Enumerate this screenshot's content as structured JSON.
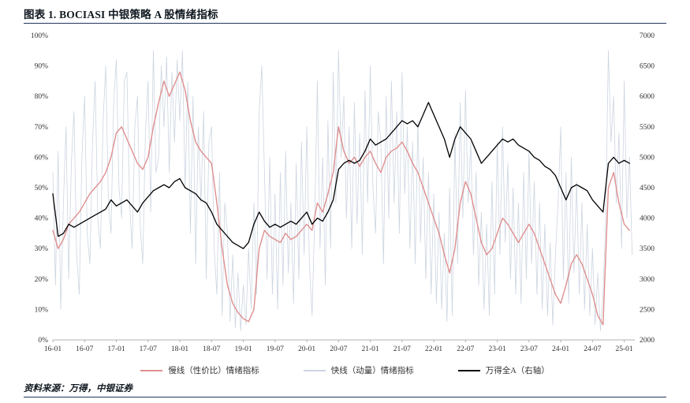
{
  "page": {
    "title": "图表 1. BOCIASI 中银策略 A 股情绪指标",
    "source": "资料来源：万得，中银证券"
  },
  "colors": {
    "rule": "#23365c",
    "slow_line": "#df8f8f",
    "fast_line": "#cdd5e1",
    "index_line": "#000000",
    "axis_text": "#333333",
    "axis_line": "#b0b0b0"
  },
  "legend": {
    "items": [
      {
        "key": "slow",
        "label": "慢线（性价比）情绪指标",
        "color": "#df8f8f"
      },
      {
        "key": "fast",
        "label": "快线（动量）情绪指标",
        "color": "#cdd5e1"
      },
      {
        "key": "index",
        "label": "万得全A（右轴）",
        "color": "#000000"
      }
    ]
  },
  "chart_data": {
    "type": "line",
    "title": "BOCIASI 中银策略 A 股情绪指标",
    "x_unit": "months since 2016-01",
    "x_max": 110,
    "grid": false,
    "legend_position": "bottom",
    "x_ticks": {
      "positions": [
        0,
        6,
        12,
        18,
        24,
        30,
        36,
        42,
        48,
        54,
        60,
        66,
        72,
        78,
        84,
        90,
        96,
        102,
        108
      ],
      "labels": [
        "16-01",
        "16-07",
        "17-01",
        "17-07",
        "18-01",
        "18-07",
        "19-01",
        "19-07",
        "20-01",
        "20-07",
        "21-01",
        "21-07",
        "22-01",
        "22-07",
        "23-01",
        "23-07",
        "24-01",
        "24-07",
        "25-01"
      ]
    },
    "y_left": {
      "min": 0,
      "max": 100,
      "tick_values": [
        0,
        10,
        20,
        30,
        40,
        50,
        60,
        70,
        80,
        90,
        100
      ],
      "labels": [
        "0%",
        "10%",
        "20%",
        "30%",
        "40%",
        "50%",
        "60%",
        "70%",
        "80%",
        "90%",
        "100%"
      ]
    },
    "y_right": {
      "min": 2000,
      "max": 7000,
      "tick_values": [
        2000,
        2500,
        3000,
        3500,
        4000,
        4500,
        5000,
        5500,
        6000,
        6500,
        7000
      ],
      "labels": [
        "2000",
        "2500",
        "3000",
        "3500",
        "4000",
        "4500",
        "5000",
        "5500",
        "6000",
        "6500",
        "7000"
      ]
    },
    "series": [
      {
        "key": "fast",
        "name": "快线（动量）情绪指标",
        "axis": "left",
        "x_step": 0.5,
        "color": "#cdd5e1",
        "width": 0.8,
        "values": [
          55,
          18,
          62,
          10,
          45,
          70,
          20,
          58,
          75,
          28,
          15,
          60,
          80,
          35,
          25,
          65,
          85,
          40,
          30,
          72,
          90,
          45,
          35,
          78,
          92,
          50,
          40,
          85,
          88,
          45,
          30,
          70,
          80,
          38,
          25,
          68,
          85,
          42,
          95,
          55,
          60,
          90,
          70,
          93,
          55,
          88,
          65,
          92,
          72,
          95,
          50,
          85,
          35,
          80,
          25,
          70,
          45,
          75,
          20,
          65,
          70,
          30,
          15,
          55,
          8,
          45,
          35,
          6,
          28,
          4,
          22,
          3,
          18,
          5,
          30,
          10,
          45,
          15,
          75,
          90,
          55,
          20,
          60,
          15,
          48,
          10,
          55,
          18,
          62,
          22,
          45,
          12,
          58,
          20,
          65,
          28,
          70,
          25,
          8,
          40,
          85,
          30,
          60,
          18,
          72,
          30,
          88,
          45,
          95,
          60,
          80,
          40,
          70,
          30,
          78,
          38,
          68,
          28,
          82,
          45,
          90,
          50,
          35,
          75,
          65,
          25,
          80,
          40,
          85,
          45,
          75,
          35,
          88,
          48,
          70,
          30,
          65,
          25,
          72,
          32,
          60,
          20,
          55,
          15,
          48,
          12,
          42,
          10,
          35,
          6,
          50,
          8,
          68,
          25,
          78,
          40,
          82,
          45,
          65,
          28,
          55,
          18,
          42,
          10,
          38,
          8,
          52,
          15,
          65,
          28,
          70,
          32,
          58,
          20,
          50,
          15,
          45,
          12,
          55,
          20,
          62,
          25,
          52,
          15,
          45,
          10,
          38,
          8,
          32,
          5,
          28,
          45,
          70,
          20,
          55,
          12,
          60,
          22,
          52,
          15,
          45,
          10,
          38,
          8,
          30,
          5,
          22,
          3,
          15,
          40,
          95,
          65,
          80,
          45,
          68,
          30,
          85,
          40,
          60,
          28
        ]
      },
      {
        "key": "slow",
        "name": "慢线（性价比）情绪指标",
        "axis": "left",
        "x_step": 1,
        "color": "#df8f8f",
        "width": 1.4,
        "values": [
          36,
          30,
          33,
          38,
          40,
          42,
          45,
          48,
          50,
          52,
          55,
          60,
          68,
          70,
          66,
          62,
          58,
          56,
          60,
          70,
          78,
          85,
          80,
          84,
          88,
          82,
          72,
          65,
          62,
          60,
          58,
          45,
          30,
          18,
          12,
          9,
          7,
          6,
          10,
          30,
          36,
          34,
          33,
          32,
          35,
          33,
          34,
          36,
          38,
          36,
          45,
          42,
          48,
          55,
          70,
          62,
          58,
          60,
          57,
          60,
          62,
          58,
          55,
          60,
          62,
          63,
          65,
          62,
          58,
          55,
          50,
          45,
          40,
          35,
          28,
          22,
          30,
          45,
          52,
          48,
          40,
          32,
          28,
          30,
          35,
          40,
          38,
          35,
          32,
          35,
          38,
          35,
          30,
          25,
          20,
          15,
          12,
          18,
          25,
          28,
          25,
          20,
          15,
          8,
          5,
          50,
          55,
          45,
          38,
          36
        ]
      },
      {
        "key": "index",
        "name": "万得全A（右轴）",
        "axis": "right",
        "x_step": 1,
        "color": "#000000",
        "width": 1.3,
        "values": [
          4400,
          3700,
          3750,
          3900,
          3850,
          3900,
          3950,
          4000,
          4050,
          4100,
          4150,
          4300,
          4200,
          4250,
          4300,
          4200,
          4100,
          4250,
          4350,
          4450,
          4500,
          4550,
          4500,
          4600,
          4650,
          4500,
          4450,
          4400,
          4300,
          4250,
          4100,
          3900,
          3800,
          3700,
          3600,
          3550,
          3500,
          3600,
          3900,
          4100,
          3950,
          3850,
          3900,
          3850,
          3900,
          3950,
          3900,
          4000,
          4100,
          3900,
          4000,
          3950,
          4100,
          4300,
          4800,
          4900,
          4950,
          4900,
          4950,
          5100,
          5300,
          5200,
          5250,
          5300,
          5400,
          5500,
          5600,
          5550,
          5600,
          5500,
          5700,
          5900,
          5700,
          5500,
          5300,
          5000,
          5300,
          5500,
          5400,
          5300,
          5100,
          4900,
          5000,
          5100,
          5200,
          5300,
          5250,
          5300,
          5200,
          5150,
          5100,
          5000,
          4950,
          4850,
          4800,
          4700,
          4500,
          4300,
          4500,
          4550,
          4500,
          4450,
          4300,
          4200,
          4100,
          4900,
          5000,
          4900,
          4950,
          4900
        ]
      }
    ]
  }
}
